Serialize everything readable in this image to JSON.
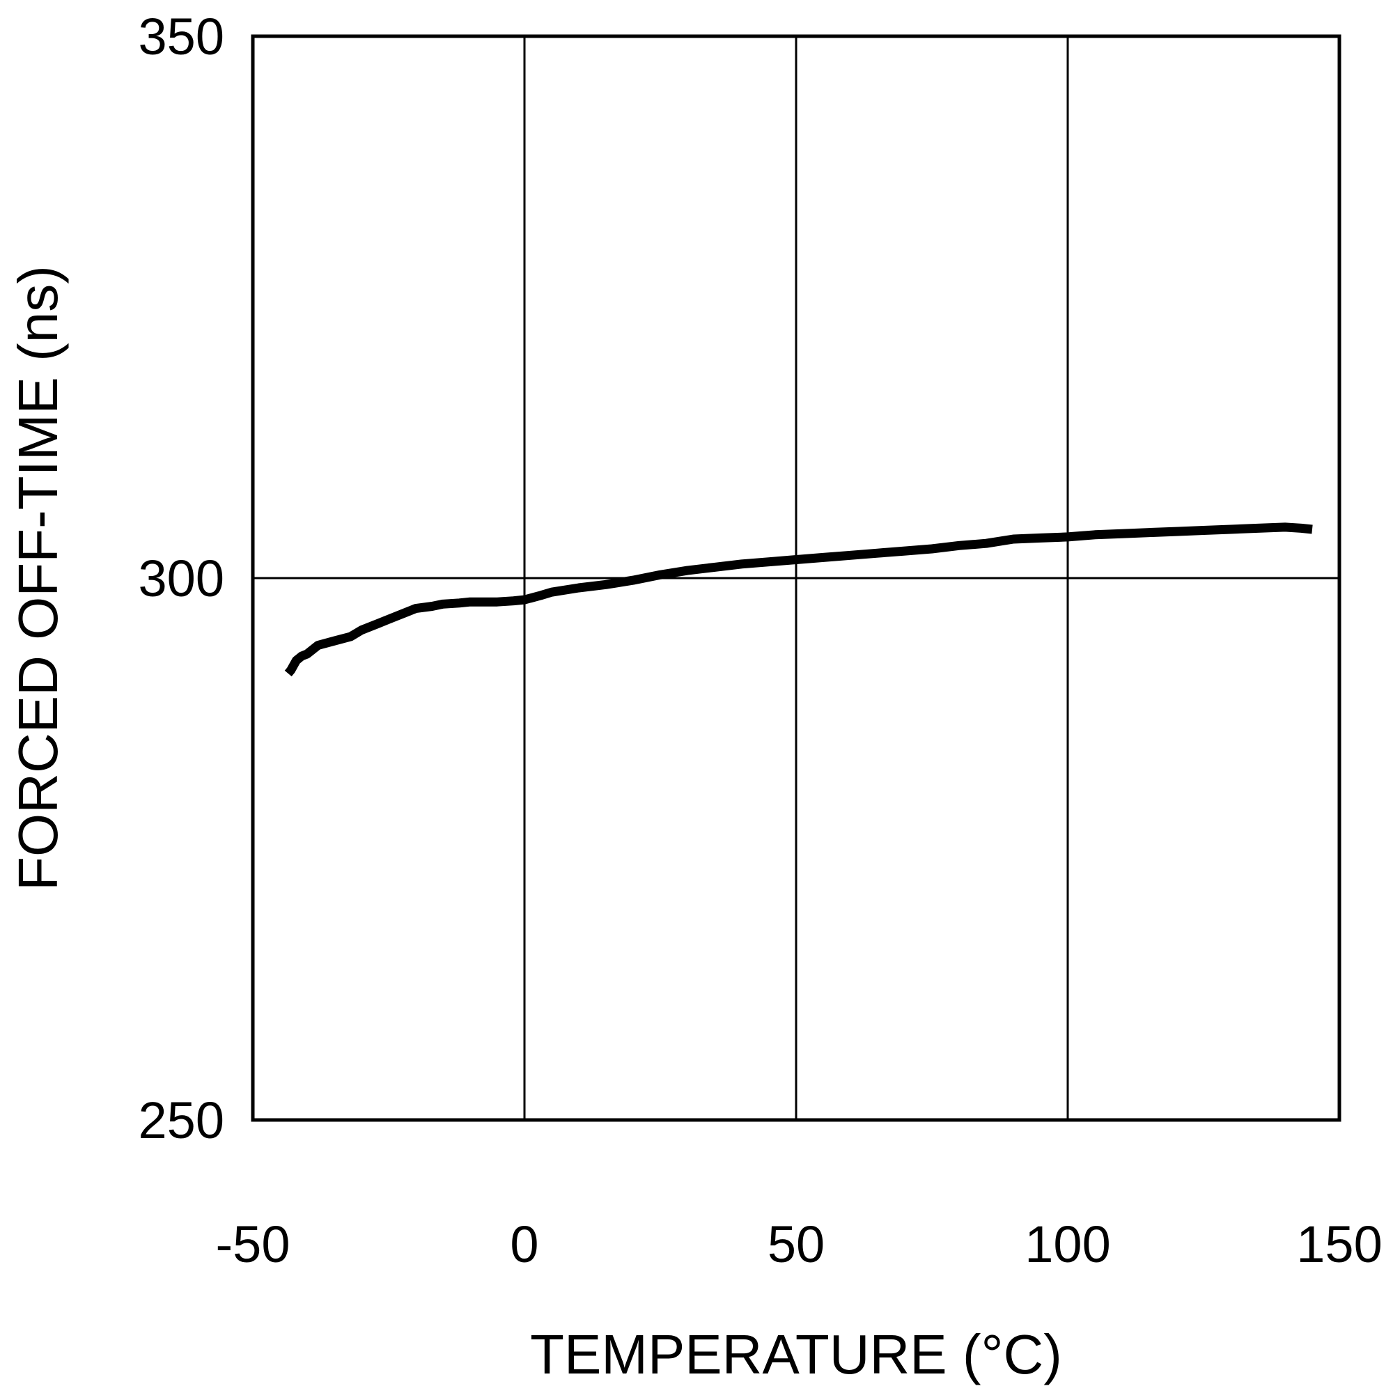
{
  "chart_data": {
    "type": "line",
    "xlabel": "TEMPERATURE (°C)",
    "ylabel": "FORCED OFF-TIME (ns)",
    "xlim": [
      -50,
      150
    ],
    "ylim": [
      250,
      350
    ],
    "x_ticks": [
      -50,
      0,
      50,
      100,
      150
    ],
    "y_ticks": [
      250,
      300,
      350
    ],
    "x_tick_labels": [
      "-50",
      "0",
      "50",
      "100",
      "150"
    ],
    "y_tick_labels": [
      "250",
      "300",
      "350"
    ],
    "grid": true,
    "line_color": "#000000",
    "series": [
      {
        "x": [
          -43.5,
          -43.0,
          -42.0,
          -41.0,
          -40.0,
          -38.0,
          -35.0,
          -32.0,
          -30.0,
          -27.0,
          -25.0,
          -22.0,
          -20.0,
          -17.0,
          -15.0,
          -12.0,
          -10.0,
          -7.0,
          -5.0,
          -2.0,
          0.0,
          3.0,
          5.0,
          10.0,
          15.0,
          20.0,
          25.0,
          30.0,
          35.0,
          40.0,
          45.0,
          50.0,
          55.0,
          60.0,
          65.0,
          70.0,
          75.0,
          80.0,
          85.0,
          90.0,
          95.0,
          100.0,
          105.0,
          110.0,
          115.0,
          120.0,
          125.0,
          130.0,
          135.0,
          140.0,
          143.0,
          145.0
        ],
        "y": [
          291.2,
          291.5,
          292.4,
          292.8,
          293.0,
          293.8,
          294.2,
          294.6,
          295.2,
          295.8,
          296.2,
          296.8,
          297.2,
          297.4,
          297.6,
          297.7,
          297.8,
          297.8,
          297.8,
          297.9,
          298.0,
          298.4,
          298.7,
          299.1,
          299.4,
          299.8,
          300.3,
          300.7,
          301.0,
          301.3,
          301.5,
          301.7,
          301.9,
          302.1,
          302.3,
          302.5,
          302.7,
          303.0,
          303.2,
          303.6,
          303.7,
          303.8,
          304.0,
          304.1,
          304.2,
          304.3,
          304.4,
          304.5,
          304.6,
          304.7,
          304.6,
          304.5
        ]
      }
    ]
  }
}
